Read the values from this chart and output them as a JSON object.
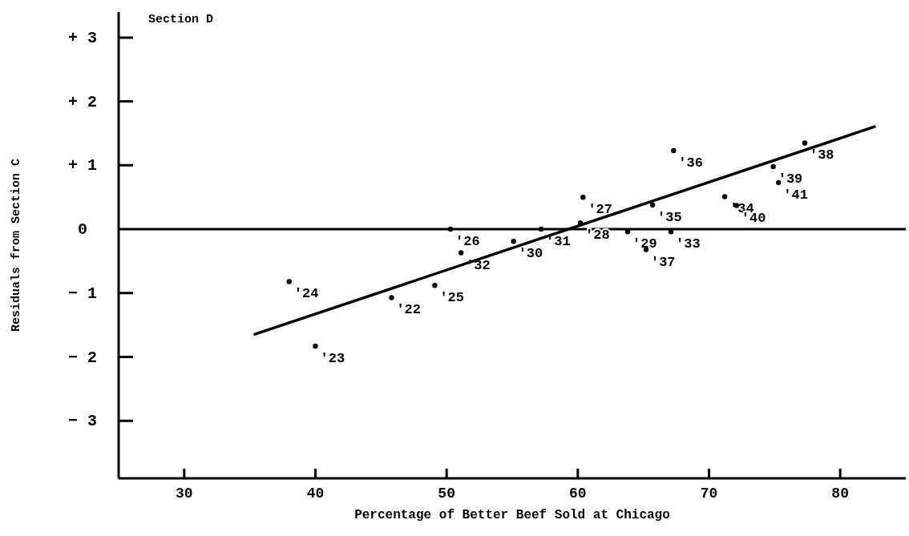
{
  "chart_data": {
    "type": "scatter",
    "title": "Section D",
    "xlabel": "Percentage of Better Beef Sold at Chicago",
    "ylabel": "Residuals from Section C",
    "xlim": [
      25,
      85
    ],
    "ylim": [
      -3.9,
      3.4
    ],
    "xticks": [
      30,
      40,
      50,
      60,
      70,
      80
    ],
    "yticks": [
      {
        "value": 3,
        "label": "+ 3"
      },
      {
        "value": 2,
        "label": "+ 2"
      },
      {
        "value": 1,
        "label": "+ 1"
      },
      0,
      {
        "value": -1,
        "label": "− 1"
      },
      {
        "value": -2,
        "label": "− 2"
      },
      {
        "value": -3,
        "label": "− 3"
      }
    ],
    "marker": "circle",
    "series": [
      {
        "type": "scatter",
        "color": "#000000",
        "x": [
          45.8,
          40.0,
          38.0,
          49.1,
          50.3,
          60.4,
          60.2,
          63.8,
          55.1,
          57.2,
          51.1,
          67.1,
          71.2,
          65.7,
          67.3,
          65.2,
          77.3,
          74.9,
          72.1,
          75.3
        ],
        "values": [
          -1.07,
          -1.83,
          -0.82,
          -0.88,
          0.0,
          0.5,
          0.1,
          -0.04,
          -0.19,
          0.0,
          -0.37,
          -0.04,
          0.51,
          0.38,
          1.23,
          -0.32,
          1.35,
          0.98,
          0.37,
          0.73
        ]
      },
      {
        "type": "line",
        "marker": "none",
        "color": "#000000",
        "x": [
          35.3,
          82.7
        ],
        "values": [
          -1.65,
          1.61
        ]
      }
    ],
    "ref_lines": [
      {
        "axis": "y",
        "value": 0,
        "color": "#000000"
      }
    ],
    "annotations": [
      {
        "text": "'22",
        "x": 45.8,
        "y": -1.07
      },
      {
        "text": "'23",
        "x": 40.0,
        "y": -1.83
      },
      {
        "text": "'24",
        "x": 38.0,
        "y": -0.82
      },
      {
        "text": "'25",
        "x": 49.1,
        "y": -0.88
      },
      {
        "text": "'26",
        "x": 50.3,
        "y": 0.0
      },
      {
        "text": "'27",
        "x": 60.4,
        "y": 0.5
      },
      {
        "text": "'28",
        "x": 60.2,
        "y": 0.1
      },
      {
        "text": "'29",
        "x": 63.8,
        "y": -0.04
      },
      {
        "text": "'30",
        "x": 55.1,
        "y": -0.19
      },
      {
        "text": "'31",
        "x": 57.2,
        "y": 0.0
      },
      {
        "text": "'32",
        "x": 51.1,
        "y": -0.37
      },
      {
        "text": "'33",
        "x": 67.1,
        "y": -0.04
      },
      {
        "text": "'34",
        "x": 71.2,
        "y": 0.51
      },
      {
        "text": "'35",
        "x": 65.7,
        "y": 0.38
      },
      {
        "text": "'36",
        "x": 67.3,
        "y": 1.23
      },
      {
        "text": "'37",
        "x": 65.2,
        "y": -0.32
      },
      {
        "text": "'38",
        "x": 77.3,
        "y": 1.35
      },
      {
        "text": "'39",
        "x": 74.9,
        "y": 0.98
      },
      {
        "text": "'40",
        "x": 72.1,
        "y": 0.37
      },
      {
        "text": "'41",
        "x": 75.3,
        "y": 0.73
      }
    ]
  }
}
